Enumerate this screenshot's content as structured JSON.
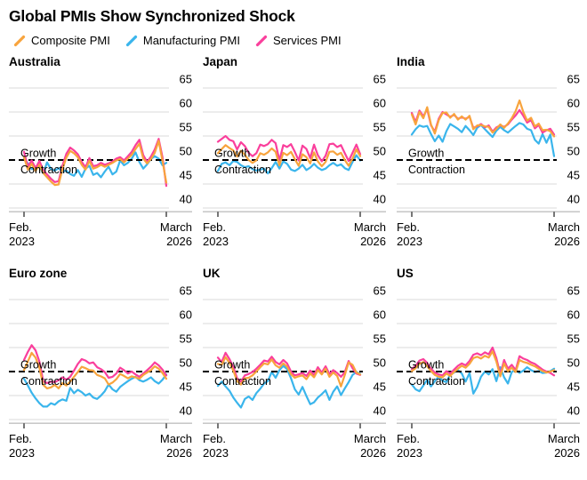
{
  "page": {
    "title": "Global PMIs Show Synchronized Shock"
  },
  "legend": {
    "items": [
      {
        "label": "Composite PMI",
        "color": "#F8A43D",
        "icon": "slash-icon"
      },
      {
        "label": "Manufacturing PMI",
        "color": "#3AB5EC",
        "icon": "slash-icon"
      },
      {
        "label": "Services PMI",
        "color": "#FA3F9C",
        "icon": "slash-icon"
      }
    ]
  },
  "annotations": {
    "above_line": "Growth",
    "below_line": "Contraction"
  },
  "axis": {
    "left_line1": "Feb.",
    "left_line2": "2023",
    "right_line1": "March",
    "right_line2": "2026"
  },
  "chart_data": {
    "type": "line",
    "x_start": "Feb. 2023",
    "x_end": "March 2026",
    "x_points": 38,
    "y_ticks": [
      65,
      60,
      55,
      50,
      45,
      40
    ],
    "ylim": [
      38,
      67
    ],
    "reference_line": 50,
    "grid": true,
    "legend_position": "top",
    "series_names": [
      "Composite PMI",
      "Manufacturing PMI",
      "Services PMI"
    ],
    "colors": {
      "composite": "#F8A43D",
      "manufacturing": "#3AB5EC",
      "services": "#FA3F9C",
      "gridline": "#D9D9D9",
      "reference": "#000000",
      "axis_baseline": "#C9C9C9",
      "tick": "#3C3C3C"
    },
    "panels": [
      {
        "title": "Australia",
        "series": {
          "composite": [
            50.6,
            48.0,
            49.2,
            47.7,
            49.0,
            47.3,
            46.4,
            45.5,
            44.8,
            44.9,
            48.1,
            50.5,
            51.9,
            51.4,
            50.6,
            49.0,
            48.0,
            49.8,
            48.2,
            48.5,
            49.0,
            48.6,
            49.0,
            49.4,
            49.9,
            50.2,
            49.5,
            50.3,
            51.1,
            52.3,
            53.4,
            50.3,
            49.3,
            50.2,
            51.5,
            54.0,
            49.8,
            45.3
          ],
          "manufacturing": [
            50.2,
            49.3,
            48.1,
            48.4,
            48.7,
            47.2,
            49.5,
            48.1,
            47.8,
            48.3,
            47.6,
            47.8,
            47.1,
            46.7,
            47.9,
            46.5,
            48.2,
            48.8,
            46.9,
            47.3,
            46.4,
            47.6,
            48.6,
            47.0,
            47.6,
            49.9,
            48.9,
            49.4,
            50.3,
            51.6,
            49.6,
            48.2,
            49.1,
            50.2,
            50.8,
            50.3,
            48.9,
            49.4
          ],
          "services": [
            51.7,
            48.6,
            49.9,
            48.3,
            49.8,
            47.9,
            47.0,
            46.1,
            45.4,
            45.6,
            48.8,
            51.3,
            52.6,
            52.0,
            51.2,
            49.6,
            48.5,
            50.4,
            48.7,
            48.9,
            49.4,
            49.0,
            49.3,
            49.7,
            50.3,
            50.6,
            49.9,
            50.8,
            51.7,
            53.1,
            54.2,
            51.0,
            49.6,
            50.7,
            52.2,
            54.4,
            50.6,
            44.6
          ]
        }
      },
      {
        "title": "Japan",
        "series": {
          "composite": [
            51.4,
            52.3,
            53.1,
            52.5,
            52.0,
            50.7,
            51.9,
            51.1,
            50.0,
            49.4,
            49.9,
            51.4,
            51.1,
            51.6,
            52.4,
            51.7,
            48.9,
            51.5,
            51.0,
            51.7,
            50.2,
            48.8,
            51.2,
            50.6,
            49.3,
            51.6,
            49.7,
            48.7,
            49.6,
            51.7,
            51.8,
            51.1,
            51.5,
            50.0,
            48.8,
            50.3,
            52.2,
            50.8
          ],
          "manufacturing": [
            47.7,
            49.2,
            49.5,
            48.9,
            49.8,
            49.6,
            48.9,
            48.5,
            48.7,
            48.1,
            47.8,
            48.0,
            48.2,
            47.2,
            48.3,
            49.6,
            48.2,
            49.7,
            49.2,
            48.0,
            47.7,
            48.2,
            49.0,
            47.9,
            48.4,
            49.2,
            48.4,
            47.9,
            48.2,
            48.9,
            49.4,
            48.8,
            49.1,
            48.3,
            47.9,
            49.6,
            51.0,
            49.9
          ],
          "services": [
            53.8,
            54.4,
            55.0,
            54.2,
            53.9,
            52.2,
            53.7,
            52.9,
            51.5,
            50.8,
            51.4,
            53.2,
            52.9,
            53.3,
            54.2,
            53.5,
            49.9,
            53.1,
            52.7,
            53.3,
            51.7,
            49.9,
            53.0,
            52.3,
            50.4,
            53.2,
            51.0,
            49.7,
            50.9,
            53.3,
            53.4,
            52.7,
            53.1,
            51.4,
            49.8,
            51.5,
            53.2,
            51.2
          ]
        }
      },
      {
        "title": "India",
        "series": {
          "composite": [
            59.5,
            57.4,
            60.0,
            58.7,
            61.0,
            57.4,
            55.5,
            58.3,
            59.8,
            59.9,
            58.8,
            59.6,
            58.4,
            59.1,
            58.4,
            59.2,
            56.4,
            57.2,
            57.3,
            57.0,
            56.9,
            55.7,
            56.5,
            57.4,
            56.7,
            57.6,
            58.7,
            60.2,
            62.4,
            60.0,
            58.2,
            58.8,
            57.0,
            57.6,
            56.2,
            56.3,
            56.0,
            54.9
          ],
          "manufacturing": [
            55.3,
            56.4,
            57.2,
            56.9,
            57.1,
            55.4,
            53.9,
            55.1,
            53.8,
            56.0,
            57.5,
            57.0,
            56.5,
            55.8,
            57.1,
            56.2,
            55.2,
            56.7,
            57.3,
            56.4,
            55.6,
            54.8,
            56.1,
            56.9,
            56.2,
            55.7,
            56.4,
            57.1,
            57.7,
            57.4,
            56.5,
            56.2,
            54.2,
            53.4,
            55.4,
            53.6,
            55.3,
            50.8
          ],
          "services": [
            59.8,
            57.9,
            60.3,
            59.1,
            60.6,
            57.2,
            55.9,
            58.6,
            60.0,
            59.5,
            59.0,
            59.4,
            58.6,
            58.9,
            58.6,
            59.0,
            56.7,
            57.0,
            57.5,
            56.8,
            57.2,
            55.9,
            56.8,
            57.2,
            56.9,
            57.4,
            58.4,
            59.3,
            60.4,
            59.2,
            57.8,
            58.3,
            56.6,
            57.3,
            55.7,
            56.2,
            56.5,
            55.3
          ]
        }
      },
      {
        "title": "Euro zone",
        "series": {
          "composite": [
            50.3,
            52.1,
            53.9,
            52.9,
            50.8,
            47.2,
            46.5,
            46.7,
            47.2,
            46.5,
            47.6,
            47.1,
            47.9,
            48.9,
            49.9,
            51.0,
            50.7,
            50.3,
            50.2,
            49.3,
            49.0,
            48.6,
            47.3,
            47.7,
            48.4,
            49.5,
            49.1,
            48.6,
            49.0,
            48.8,
            48.5,
            49.3,
            49.8,
            50.3,
            51.1,
            50.6,
            49.7,
            48.5
          ],
          "manufacturing": [
            48.5,
            47.1,
            45.6,
            44.4,
            43.4,
            42.7,
            42.7,
            43.4,
            43.1,
            43.8,
            44.2,
            43.9,
            46.6,
            45.5,
            46.2,
            45.7,
            45.0,
            45.4,
            44.6,
            44.3,
            45.0,
            45.9,
            47.3,
            46.3,
            45.8,
            46.8,
            47.4,
            48.0,
            48.5,
            48.9,
            48.2,
            47.9,
            48.3,
            48.8,
            48.0,
            47.5,
            48.3,
            49.4
          ],
          "services": [
            52.4,
            54.1,
            55.5,
            54.4,
            52.1,
            48.0,
            47.6,
            47.9,
            47.8,
            48.2,
            48.8,
            48.3,
            48.9,
            50.2,
            51.6,
            52.6,
            52.3,
            51.7,
            51.9,
            50.9,
            50.5,
            49.9,
            48.7,
            48.9,
            49.6,
            50.8,
            50.3,
            49.6,
            50.0,
            49.4,
            48.9,
            49.6,
            50.3,
            51.0,
            51.9,
            51.3,
            50.4,
            49.2
          ]
        }
      },
      {
        "title": "UK",
        "series": {
          "composite": [
            51.6,
            51.4,
            53.0,
            51.8,
            50.2,
            48.0,
            47.3,
            48.6,
            48.7,
            49.2,
            50.0,
            50.9,
            51.7,
            51.5,
            52.5,
            51.3,
            50.8,
            51.7,
            51.0,
            49.4,
            48.7,
            49.0,
            49.2,
            48.4,
            49.6,
            48.8,
            50.3,
            49.4,
            50.6,
            48.9,
            49.8,
            49.1,
            46.9,
            49.3,
            51.9,
            51.4,
            49.8,
            49.4
          ],
          "manufacturing": [
            47.0,
            47.9,
            46.9,
            46.0,
            44.6,
            43.5,
            42.5,
            44.3,
            44.8,
            44.1,
            45.5,
            46.4,
            47.5,
            48.0,
            49.9,
            48.7,
            50.3,
            51.2,
            50.5,
            48.6,
            46.3,
            45.2,
            46.8,
            44.9,
            43.2,
            43.6,
            44.6,
            45.3,
            46.1,
            44.1,
            45.8,
            46.9,
            45.1,
            46.5,
            47.8,
            49.3,
            49.9,
            49.5
          ],
          "services": [
            52.9,
            52.0,
            53.9,
            52.6,
            51.0,
            48.6,
            47.9,
            49.2,
            49.5,
            49.9,
            50.6,
            51.4,
            52.3,
            52.1,
            53.1,
            52.0,
            51.5,
            52.4,
            51.7,
            50.0,
            49.2,
            49.4,
            49.7,
            49.1,
            50.2,
            49.3,
            50.9,
            49.8,
            51.1,
            49.5,
            50.3,
            49.7,
            48.9,
            49.9,
            52.2,
            50.7,
            49.6,
            49.3
          ]
        }
      },
      {
        "title": "US",
        "series": {
          "composite": [
            50.1,
            50.7,
            51.6,
            52.0,
            51.1,
            50.1,
            49.3,
            48.9,
            48.8,
            49.6,
            49.1,
            49.9,
            50.6,
            51.2,
            50.8,
            51.6,
            52.8,
            53.1,
            52.7,
            53.3,
            52.9,
            54.2,
            52.1,
            49.0,
            51.7,
            50.1,
            50.8,
            49.9,
            52.4,
            52.0,
            51.8,
            51.4,
            51.1,
            50.6,
            50.1,
            49.8,
            50.0,
            50.3
          ],
          "manufacturing": [
            47.3,
            46.3,
            45.9,
            47.1,
            48.3,
            46.9,
            48.0,
            49.0,
            48.1,
            47.8,
            49.4,
            49.8,
            50.3,
            49.6,
            47.9,
            49.7,
            45.4,
            46.8,
            48.9,
            50.0,
            49.4,
            50.5,
            48.0,
            50.9,
            48.8,
            47.5,
            49.9,
            50.4,
            49.7,
            50.2,
            50.9,
            50.3,
            49.9,
            50.1,
            49.7,
            49.8,
            50.1,
            50.6
          ],
          "services": [
            50.5,
            51.2,
            52.3,
            52.6,
            51.8,
            50.6,
            49.8,
            49.4,
            49.2,
            50.1,
            49.6,
            50.4,
            51.2,
            51.7,
            51.3,
            52.2,
            53.5,
            53.8,
            53.4,
            54.0,
            53.6,
            55.0,
            52.8,
            49.4,
            52.4,
            50.6,
            51.4,
            50.3,
            53.2,
            52.7,
            52.4,
            51.9,
            51.6,
            51.0,
            50.4,
            50.0,
            49.7,
            49.2
          ]
        }
      }
    ]
  }
}
